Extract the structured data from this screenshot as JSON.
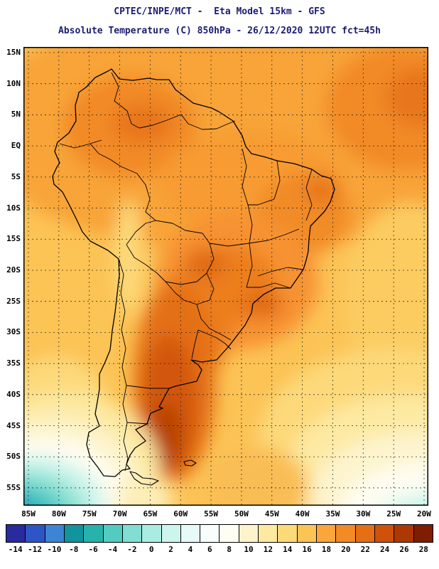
{
  "header": {
    "title_line1": "CPTEC/INPE/MCT -  Eta Model 15km - GFS",
    "title_line2": "Absolute Temperature (C) 850hPa - 26/12/2020 12UTC fct=45h"
  },
  "map": {
    "lat_ticks": [
      "15N",
      "10N",
      "5N",
      "EQ",
      "5S",
      "10S",
      "15S",
      "20S",
      "25S",
      "30S",
      "35S",
      "40S",
      "45S",
      "50S",
      "55S"
    ],
    "lon_ticks": [
      "85W",
      "80W",
      "75W",
      "70W",
      "65W",
      "60W",
      "55W",
      "50W",
      "45W",
      "40W",
      "35W",
      "30W",
      "25W",
      "20W"
    ]
  },
  "colorbar": {
    "tick_labels": [
      "-14",
      "-12",
      "-10",
      "-8",
      "-6",
      "-4",
      "-2",
      "0",
      "2",
      "4",
      "6",
      "8",
      "10",
      "12",
      "14",
      "16",
      "18",
      "20",
      "22",
      "24",
      "26",
      "28"
    ],
    "colors": [
      "#292a9e",
      "#2e55c6",
      "#3e84d4",
      "#11949c",
      "#27b3ab",
      "#52ccc0",
      "#82ded2",
      "#abece2",
      "#ccf5ee",
      "#e6fbf7",
      "#f7fefc",
      "#fffef2",
      "#fdf4cd",
      "#fde9a2",
      "#fdda78",
      "#fcc355",
      "#faa63c",
      "#f28a26",
      "#e46f15",
      "#cf520b",
      "#ad3806",
      "#7f1d03"
    ]
  },
  "chart_data": {
    "type": "heatmap",
    "title": "CPTEC/INPE/MCT -  Eta Model 15km - GFS",
    "subtitle": "Absolute Temperature (C) 850hPa - 26/12/2020 12UTC fct=45h",
    "institution": "CPTEC/INPE/MCT",
    "model": "Eta Model 15km",
    "driving_model": "GFS",
    "variable": "Absolute Temperature",
    "units": "C",
    "level": "850hPa",
    "valid": "26/12/2020 12UTC",
    "forecast": "fct=45h",
    "region": {
      "lat_range": [
        "15N",
        "55S"
      ],
      "lon_range": [
        "85W",
        "20W"
      ]
    },
    "grid_spacing_degrees": 5,
    "legend_position": "bottom",
    "scale_celsius": [
      -14,
      -12,
      -10,
      -8,
      -6,
      -4,
      -2,
      0,
      2,
      4,
      6,
      8,
      10,
      12,
      14,
      16,
      18,
      20,
      22,
      24,
      26,
      28
    ],
    "scale_colors": [
      "#292a9e",
      "#2e55c6",
      "#3e84d4",
      "#11949c",
      "#27b3ab",
      "#52ccc0",
      "#82ded2",
      "#abece2",
      "#ccf5ee",
      "#e6fbf7",
      "#f7fefc",
      "#fffef2",
      "#fdf4cd",
      "#fde9a2",
      "#fdda78",
      "#fcc355",
      "#faa63c",
      "#f28a26",
      "#e46f15",
      "#cf520b",
      "#ad3806",
      "#7f1d03"
    ]
  }
}
